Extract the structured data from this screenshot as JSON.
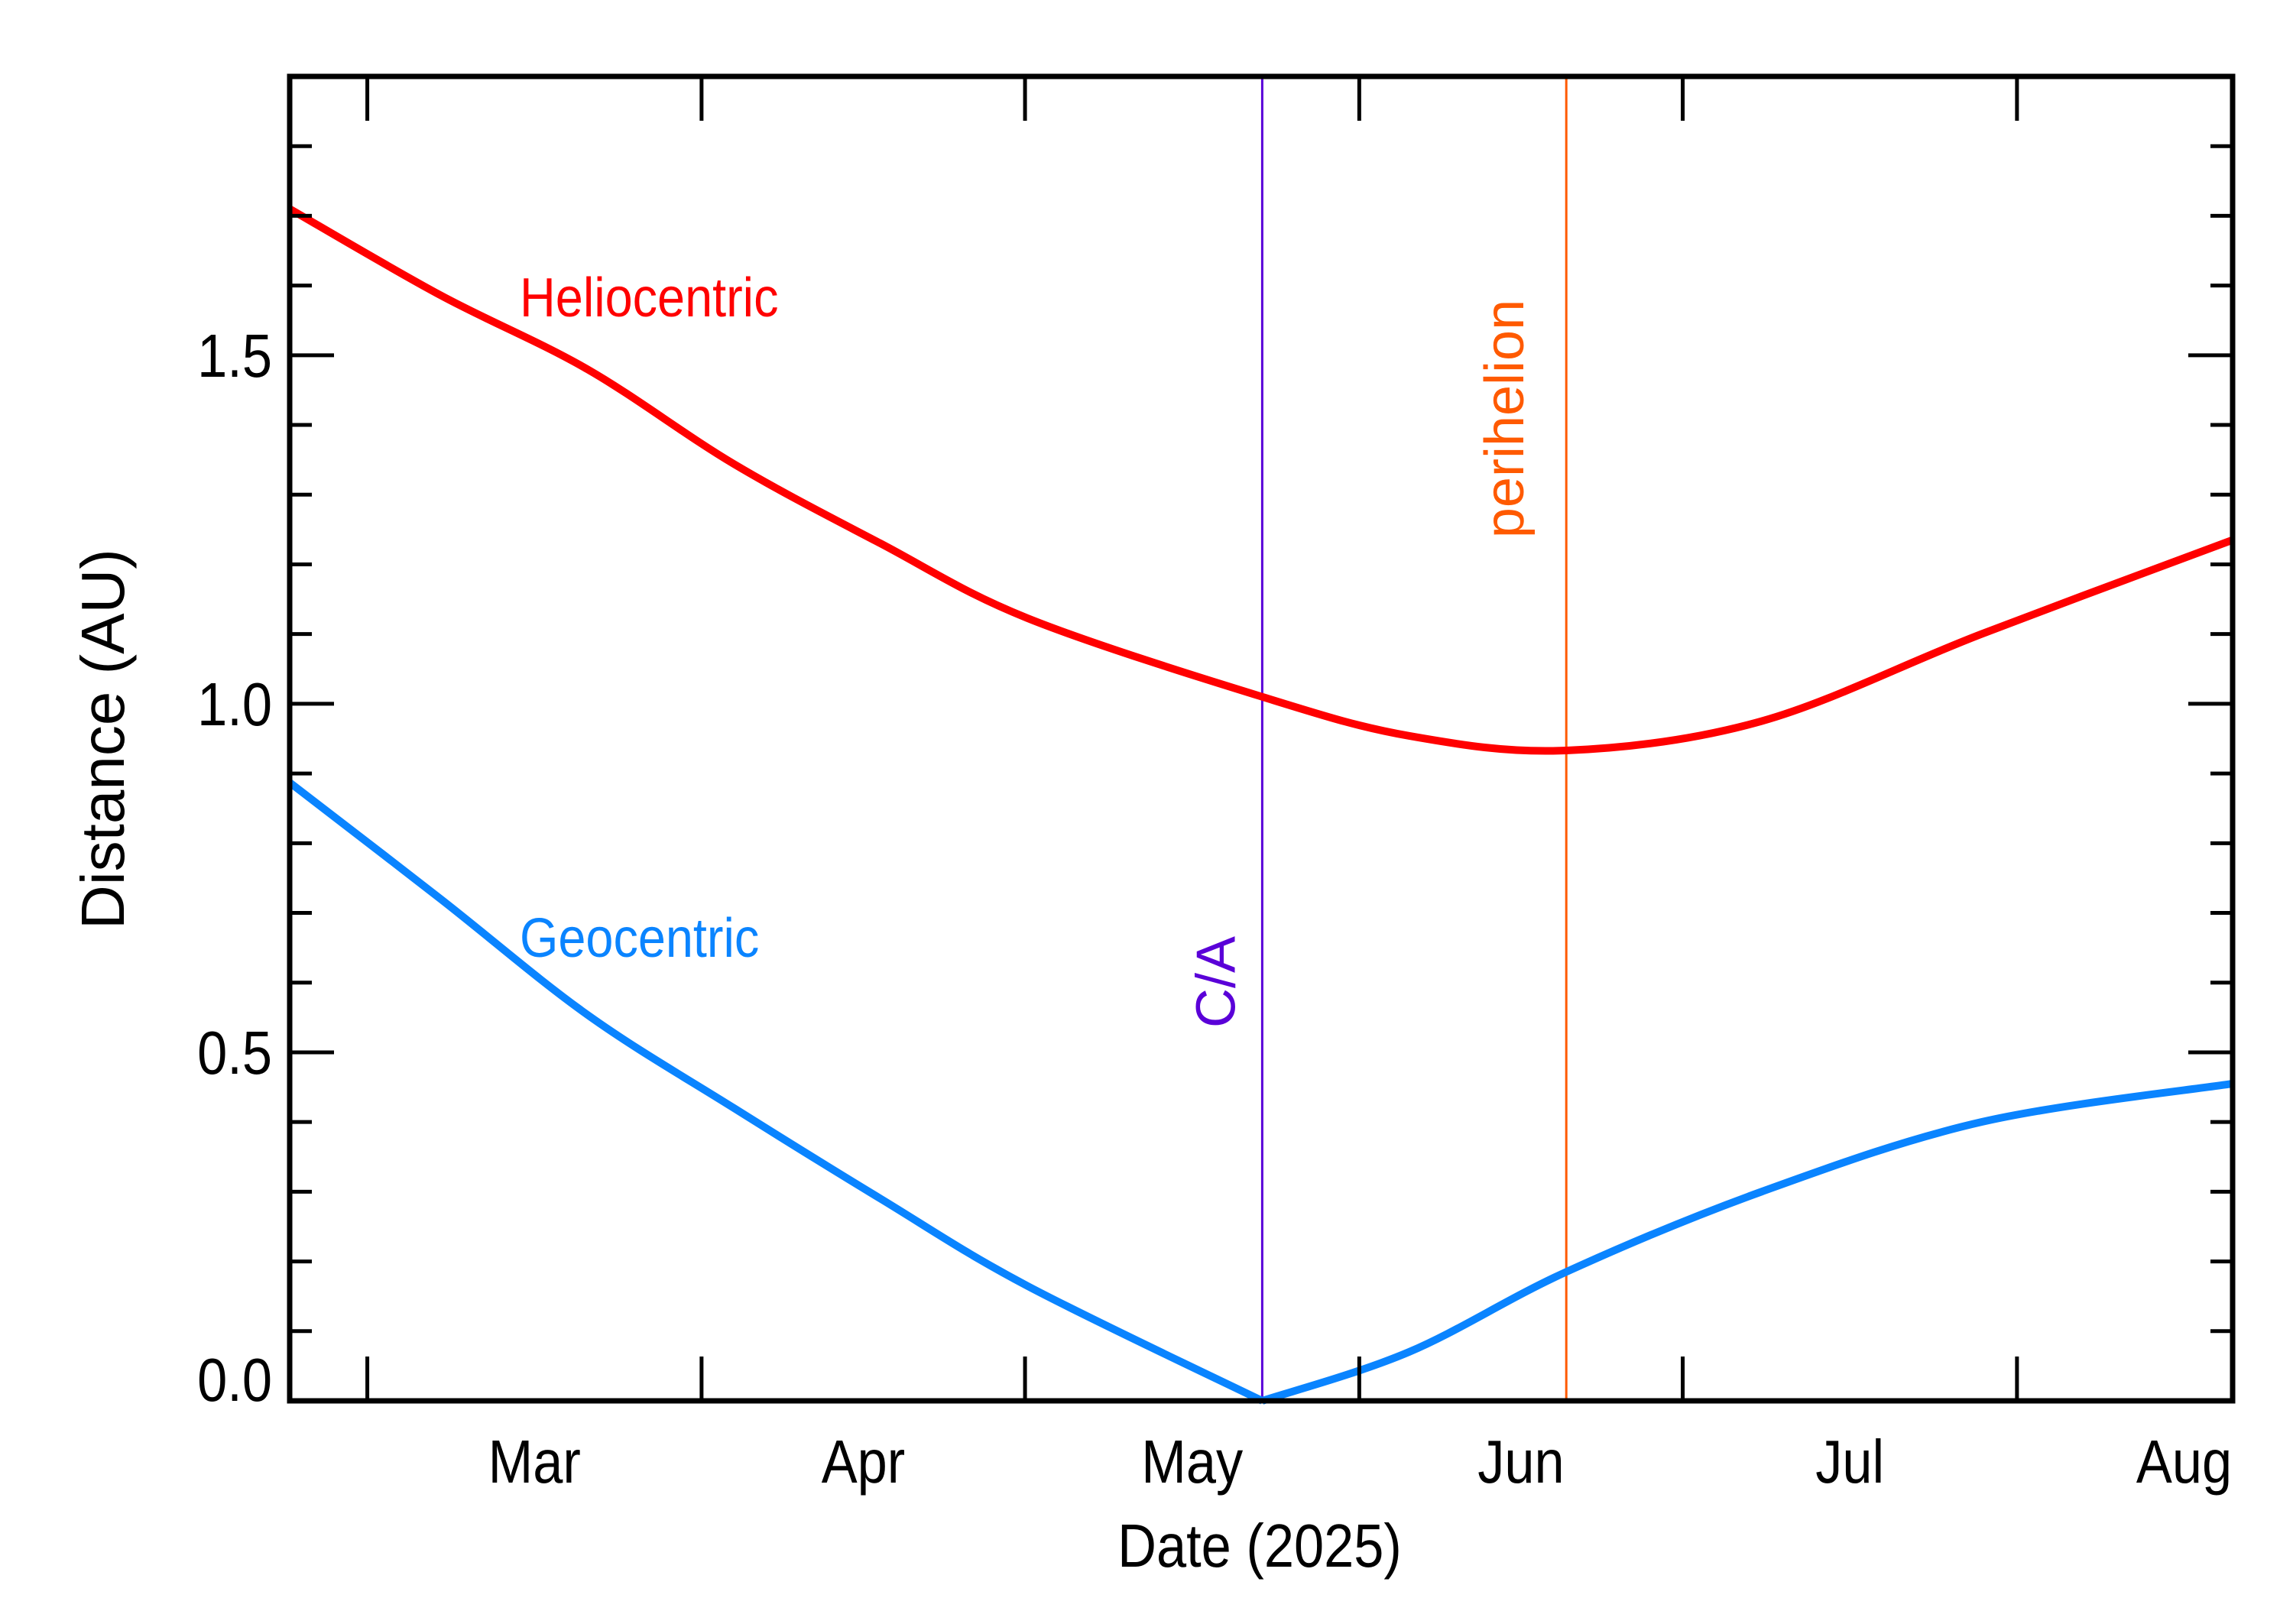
{
  "chart_data": {
    "type": "line",
    "title": "",
    "xlabel": "Date (2025)",
    "ylabel": "Distance (AU)",
    "x_units": "day of year 2025 (0 = Jan 1)",
    "xlim": [
      51.8,
      232
    ],
    "ylim": [
      0,
      1.9
    ],
    "grid": false,
    "x_major_ticks": [
      59,
      90,
      120,
      151,
      181,
      212
    ],
    "x_tick_labels": [
      {
        "text": "Mar",
        "at": 74.5
      },
      {
        "text": "Apr",
        "at": 105
      },
      {
        "text": "May",
        "at": 135.5
      },
      {
        "text": "Jun",
        "at": 166
      },
      {
        "text": "Jul",
        "at": 196.5
      },
      {
        "text": "Aug",
        "at": 227.5
      }
    ],
    "y_major_ticks": [
      0,
      0.5,
      1.0,
      1.5
    ],
    "y_tick_labels": [
      "0.0",
      "0.5",
      "1.0",
      "1.5"
    ],
    "y_minor_step": 0.1,
    "x": [
      51.8,
      65.8,
      79.4,
      93,
      106.6,
      120.2,
      142,
      155.6,
      170.2,
      188.3,
      208.7,
      232
    ],
    "series": [
      {
        "name": "Heliocentric",
        "color": "#ff0000",
        "values": [
          1.71,
          1.586,
          1.48,
          1.344,
          1.23,
          1.123,
          1.01,
          0.954,
          0.933,
          0.975,
          1.1,
          1.235
        ]
      },
      {
        "name": "Geocentric",
        "color": "#0a84ff",
        "values": [
          0.887,
          0.72,
          0.554,
          0.42,
          0.29,
          0.165,
          0.0,
          0.07,
          0.185,
          0.3,
          0.4,
          0.455
        ]
      }
    ],
    "markers": [
      {
        "label": "C/A",
        "x": 142,
        "color": "#5a00d8"
      },
      {
        "label": "perihelion",
        "x": 170.2,
        "color": "#ff5a00"
      }
    ],
    "annotations": [
      {
        "text": "Heliocentric",
        "color": "#ff0000"
      },
      {
        "text": "Geocentric",
        "color": "#0a84ff"
      }
    ]
  }
}
